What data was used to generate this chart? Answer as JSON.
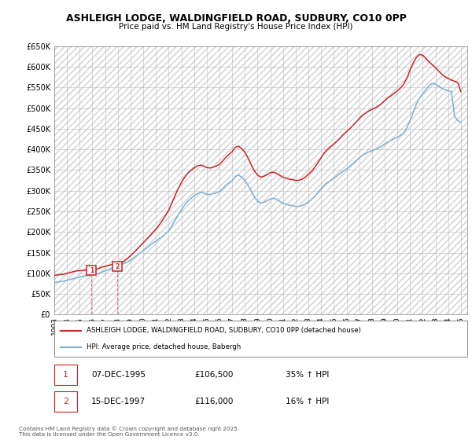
{
  "title": "ASHLEIGH LODGE, WALDINGFIELD ROAD, SUDBURY, CO10 0PP",
  "subtitle": "Price paid vs. HM Land Registry's House Price Index (HPI)",
  "ylim": [
    0,
    650000
  ],
  "xlim_start": 1993.0,
  "xlim_end": 2025.5,
  "legend_line1": "ASHLEIGH LODGE, WALDINGFIELD ROAD, SUDBURY, CO10 0PP (detached house)",
  "legend_line2": "HPI: Average price, detached house, Babergh",
  "sale1_date": "07-DEC-1995",
  "sale1_price": "£106,500",
  "sale1_hpi": "35% ↑ HPI",
  "sale2_date": "15-DEC-1997",
  "sale2_price": "£116,000",
  "sale2_hpi": "16% ↑ HPI",
  "footnote": "Contains HM Land Registry data © Crown copyright and database right 2025.\nThis data is licensed under the Open Government Licence v3.0.",
  "hpi_color": "#7bafd4",
  "price_color": "#cc2222",
  "sale1_x": 1995.93,
  "sale1_y": 106500,
  "sale2_x": 1997.95,
  "sale2_y": 116000,
  "hpi_x": [
    1993.0,
    1993.25,
    1993.5,
    1993.75,
    1994.0,
    1994.25,
    1994.5,
    1994.75,
    1995.0,
    1995.25,
    1995.5,
    1995.75,
    1996.0,
    1996.25,
    1996.5,
    1996.75,
    1997.0,
    1997.25,
    1997.5,
    1997.75,
    1998.0,
    1998.25,
    1998.5,
    1998.75,
    1999.0,
    1999.25,
    1999.5,
    1999.75,
    2000.0,
    2000.25,
    2000.5,
    2000.75,
    2001.0,
    2001.25,
    2001.5,
    2001.75,
    2002.0,
    2002.25,
    2002.5,
    2002.75,
    2003.0,
    2003.25,
    2003.5,
    2003.75,
    2004.0,
    2004.25,
    2004.5,
    2004.75,
    2005.0,
    2005.25,
    2005.5,
    2005.75,
    2006.0,
    2006.25,
    2006.5,
    2006.75,
    2007.0,
    2007.25,
    2007.5,
    2007.75,
    2008.0,
    2008.25,
    2008.5,
    2008.75,
    2009.0,
    2009.25,
    2009.5,
    2009.75,
    2010.0,
    2010.25,
    2010.5,
    2010.75,
    2011.0,
    2011.25,
    2011.5,
    2011.75,
    2012.0,
    2012.25,
    2012.5,
    2012.75,
    2013.0,
    2013.25,
    2013.5,
    2013.75,
    2014.0,
    2014.25,
    2014.5,
    2014.75,
    2015.0,
    2015.25,
    2015.5,
    2015.75,
    2016.0,
    2016.25,
    2016.5,
    2016.75,
    2017.0,
    2017.25,
    2017.5,
    2017.75,
    2018.0,
    2018.25,
    2018.5,
    2018.75,
    2019.0,
    2019.25,
    2019.5,
    2019.75,
    2020.0,
    2020.25,
    2020.5,
    2020.75,
    2021.0,
    2021.25,
    2021.5,
    2021.75,
    2022.0,
    2022.25,
    2022.5,
    2022.75,
    2023.0,
    2023.25,
    2023.5,
    2023.75,
    2024.0,
    2024.25,
    2024.5,
    2024.75,
    2025.0
  ],
  "hpi_y": [
    78000,
    79000,
    80000,
    81000,
    83000,
    85000,
    87000,
    89000,
    91000,
    93000,
    94000,
    95000,
    96000,
    98000,
    100000,
    103000,
    106000,
    109000,
    112000,
    115000,
    118000,
    121000,
    124000,
    127000,
    132000,
    137000,
    143000,
    149000,
    155000,
    161000,
    167000,
    173000,
    178000,
    184000,
    189000,
    196000,
    203000,
    215000,
    228000,
    241000,
    254000,
    265000,
    274000,
    281000,
    288000,
    293000,
    296000,
    295000,
    291000,
    291000,
    293000,
    295000,
    298000,
    305000,
    313000,
    319000,
    325000,
    335000,
    338000,
    333000,
    325000,
    313000,
    299000,
    285000,
    275000,
    270000,
    272000,
    276000,
    280000,
    282000,
    279000,
    274000,
    270000,
    267000,
    265000,
    264000,
    262000,
    262000,
    264000,
    268000,
    273000,
    279000,
    287000,
    296000,
    305000,
    314000,
    320000,
    325000,
    330000,
    336000,
    342000,
    347000,
    353000,
    359000,
    366000,
    373000,
    380000,
    386000,
    390000,
    394000,
    397000,
    400000,
    403000,
    408000,
    413000,
    418000,
    422000,
    426000,
    430000,
    434000,
    440000,
    453000,
    470000,
    490000,
    510000,
    525000,
    535000,
    545000,
    555000,
    560000,
    558000,
    553000,
    548000,
    545000,
    542000,
    540000,
    480000,
    470000,
    465000
  ],
  "price_x": [
    1993.0,
    1993.25,
    1993.5,
    1993.75,
    1994.0,
    1994.25,
    1994.5,
    1994.75,
    1995.0,
    1995.25,
    1995.5,
    1995.75,
    1995.93,
    1996.0,
    1996.25,
    1996.5,
    1996.75,
    1997.0,
    1997.25,
    1997.5,
    1997.75,
    1997.95,
    1998.0,
    1998.25,
    1998.5,
    1998.75,
    1999.0,
    1999.25,
    1999.5,
    1999.75,
    2000.0,
    2000.25,
    2000.5,
    2000.75,
    2001.0,
    2001.25,
    2001.5,
    2001.75,
    2002.0,
    2002.25,
    2002.5,
    2002.75,
    2003.0,
    2003.25,
    2003.5,
    2003.75,
    2004.0,
    2004.25,
    2004.5,
    2004.75,
    2005.0,
    2005.25,
    2005.5,
    2005.75,
    2006.0,
    2006.25,
    2006.5,
    2006.75,
    2007.0,
    2007.25,
    2007.5,
    2007.75,
    2008.0,
    2008.25,
    2008.5,
    2008.75,
    2009.0,
    2009.25,
    2009.5,
    2009.75,
    2010.0,
    2010.25,
    2010.5,
    2010.75,
    2011.0,
    2011.25,
    2011.5,
    2011.75,
    2012.0,
    2012.25,
    2012.5,
    2012.75,
    2013.0,
    2013.25,
    2013.5,
    2013.75,
    2014.0,
    2014.25,
    2014.5,
    2014.75,
    2015.0,
    2015.25,
    2015.5,
    2015.75,
    2016.0,
    2016.25,
    2016.5,
    2016.75,
    2017.0,
    2017.25,
    2017.5,
    2017.75,
    2018.0,
    2018.25,
    2018.5,
    2018.75,
    2019.0,
    2019.25,
    2019.5,
    2019.75,
    2020.0,
    2020.25,
    2020.5,
    2020.75,
    2021.0,
    2021.25,
    2021.5,
    2021.75,
    2022.0,
    2022.25,
    2022.5,
    2022.75,
    2023.0,
    2023.25,
    2023.5,
    2023.75,
    2024.0,
    2024.25,
    2024.5,
    2024.75,
    2025.0
  ],
  "price_y": [
    95000,
    96000,
    97000,
    98000,
    100000,
    102000,
    104000,
    106000,
    106500,
    107000,
    108000,
    107000,
    106500,
    107000,
    109000,
    112000,
    115000,
    117000,
    119000,
    121000,
    119000,
    116000,
    120000,
    125000,
    130000,
    136000,
    143000,
    150000,
    158000,
    166000,
    174000,
    182000,
    190000,
    199000,
    207000,
    217000,
    228000,
    240000,
    253000,
    270000,
    288000,
    305000,
    320000,
    332000,
    342000,
    349000,
    355000,
    360000,
    362000,
    360000,
    356000,
    355000,
    357000,
    360000,
    364000,
    372000,
    381000,
    388000,
    395000,
    405000,
    408000,
    402000,
    393000,
    379000,
    363000,
    348000,
    338000,
    333000,
    335000,
    339000,
    344000,
    345000,
    342000,
    337000,
    333000,
    330000,
    328000,
    327000,
    325000,
    325000,
    328000,
    333000,
    340000,
    347000,
    357000,
    368000,
    380000,
    392000,
    400000,
    407000,
    413000,
    420000,
    428000,
    436000,
    443000,
    450000,
    458000,
    466000,
    475000,
    483000,
    488000,
    493000,
    497000,
    501000,
    505000,
    511000,
    518000,
    525000,
    530000,
    536000,
    542000,
    549000,
    558000,
    573000,
    592000,
    610000,
    623000,
    630000,
    628000,
    620000,
    612000,
    605000,
    598000,
    590000,
    582000,
    576000,
    572000,
    568000,
    565000,
    562000,
    540000
  ]
}
